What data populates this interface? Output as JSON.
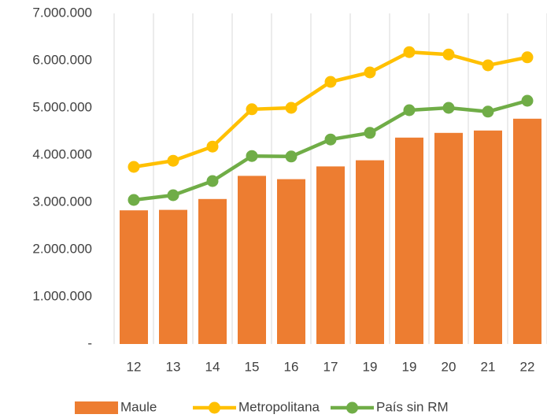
{
  "chart_data": {
    "type": "bar",
    "categories": [
      "12",
      "13",
      "14",
      "15",
      "16",
      "17",
      "19",
      "19",
      "20",
      "21",
      "22"
    ],
    "series": [
      {
        "name": "Maule",
        "type": "bar",
        "color": "#ed7d31",
        "values": [
          2830000,
          2840000,
          3070000,
          3560000,
          3490000,
          3760000,
          3890000,
          4370000,
          4470000,
          4520000,
          4770000
        ]
      },
      {
        "name": "Metropolitana",
        "type": "line",
        "color": "#ffc000",
        "values": [
          3750000,
          3880000,
          4180000,
          4970000,
          5000000,
          5550000,
          5750000,
          6180000,
          6130000,
          5900000,
          6070000
        ]
      },
      {
        "name": "País sin RM",
        "type": "line",
        "color": "#70ad47",
        "values": [
          3050000,
          3150000,
          3450000,
          3980000,
          3970000,
          4330000,
          4470000,
          4950000,
          5000000,
          4920000,
          5150000
        ]
      }
    ],
    "ylim": [
      0,
      7000000
    ],
    "yticks": [
      {
        "value": 0,
        "label": "-"
      },
      {
        "value": 1000000,
        "label": "1.000.000"
      },
      {
        "value": 2000000,
        "label": "2.000.000"
      },
      {
        "value": 3000000,
        "label": "3.000.000"
      },
      {
        "value": 4000000,
        "label": "4.000.000"
      },
      {
        "value": 5000000,
        "label": "5.000.000"
      },
      {
        "value": 6000000,
        "label": "6.000.000"
      },
      {
        "value": 7000000,
        "label": "7.000.000"
      }
    ],
    "legend": "bottom"
  }
}
